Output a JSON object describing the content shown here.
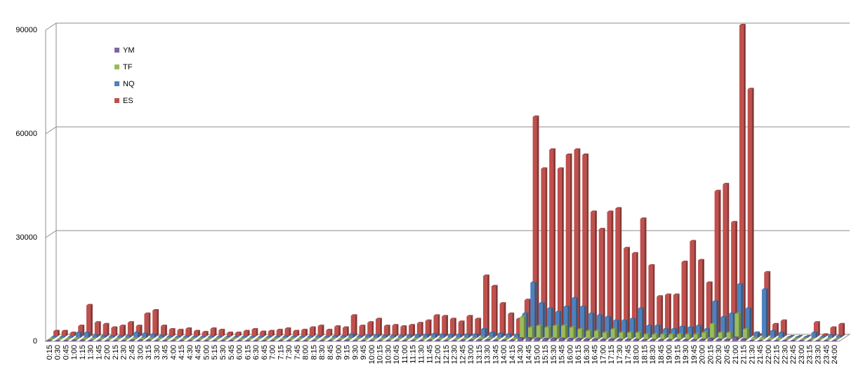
{
  "chart_data": {
    "type": "bar3d",
    "categories": [
      "0:15",
      "0:30",
      "0:45",
      "1:00",
      "1:15",
      "1:30",
      "1:45",
      "2:00",
      "2:15",
      "2:30",
      "2:45",
      "3:00",
      "3:15",
      "3:30",
      "3:45",
      "4:00",
      "4:15",
      "4:30",
      "4:45",
      "5:00",
      "5:15",
      "5:30",
      "5:45",
      "6:00",
      "6:15",
      "6:30",
      "6:45",
      "7:00",
      "7:15",
      "7:30",
      "7:45",
      "8:00",
      "8:15",
      "8:30",
      "8:45",
      "9:00",
      "9:15",
      "9:30",
      "9:45",
      "10:00",
      "10:15",
      "10:30",
      "10:45",
      "11:00",
      "11:15",
      "11:30",
      "11:45",
      "12:00",
      "12:15",
      "12:30",
      "12:45",
      "13:00",
      "13:15",
      "13:30",
      "13:45",
      "14:00",
      "14:15",
      "14:30",
      "14:45",
      "15:00",
      "15:15",
      "15:30",
      "15:45",
      "16:00",
      "16:15",
      "16:30",
      "16:45",
      "17:00",
      "17:15",
      "17:30",
      "17:45",
      "18:00",
      "18:15",
      "18:30",
      "18:45",
      "19:00",
      "19:15",
      "19:30",
      "19:45",
      "20:00",
      "20:15",
      "20:30",
      "20:45",
      "21:00",
      "21:15",
      "21:30",
      "21:45",
      "22:00",
      "22:15",
      "22:30",
      "22:45",
      "23:00",
      "23:15",
      "23:30",
      "23:45",
      "24:00"
    ],
    "series": [
      {
        "name": "ES",
        "color": "#c0504d",
        "values": [
          1500,
          1500,
          1000,
          3000,
          9000,
          4000,
          3500,
          2500,
          3000,
          4000,
          3000,
          6500,
          7500,
          3000,
          2000,
          1800,
          2200,
          1500,
          1200,
          2200,
          1800,
          1000,
          1000,
          1500,
          2000,
          1300,
          1500,
          1800,
          2200,
          1500,
          1800,
          2500,
          3000,
          1800,
          2800,
          2500,
          6000,
          3000,
          4000,
          5000,
          3000,
          3200,
          2800,
          3200,
          3800,
          4500,
          6000,
          5800,
          5000,
          4200,
          5800,
          5000,
          17500,
          14500,
          9500,
          6500,
          5000,
          10500,
          63500,
          48500,
          54000,
          48500,
          52500,
          54000,
          52500,
          36000,
          31000,
          36000,
          37000,
          25500,
          24000,
          34000,
          20500,
          11500,
          12000,
          12000,
          21500,
          27500,
          22000,
          15500,
          42000,
          44000,
          33000,
          90000,
          71500,
          500,
          18500,
          3500,
          4500,
          0,
          0,
          0,
          4000,
          500,
          2500,
          3500
        ]
      },
      {
        "name": "NQ",
        "color": "#4f81bd",
        "values": [
          300,
          300,
          300,
          1500,
          1500,
          800,
          600,
          500,
          500,
          600,
          1500,
          1200,
          1000,
          600,
          400,
          300,
          400,
          300,
          300,
          400,
          300,
          200,
          200,
          300,
          300,
          300,
          300,
          300,
          400,
          300,
          300,
          400,
          500,
          300,
          500,
          500,
          1000,
          500,
          700,
          800,
          600,
          600,
          600,
          700,
          800,
          900,
          1100,
          1000,
          900,
          900,
          1000,
          1000,
          2500,
          1500,
          1200,
          1000,
          900,
          7000,
          16000,
          10000,
          8500,
          7500,
          9000,
          11500,
          9000,
          7000,
          6500,
          6000,
          5000,
          5000,
          5500,
          8500,
          3500,
          3500,
          2500,
          2500,
          3200,
          3000,
          3500,
          2500,
          10500,
          6000,
          7000,
          15500,
          8500,
          1500,
          14000,
          2000,
          1500,
          200,
          200,
          200,
          1500,
          300,
          800,
          600
        ]
      },
      {
        "name": "TF",
        "color": "#9bbb59",
        "values": [
          200,
          200,
          200,
          300,
          300,
          200,
          200,
          200,
          200,
          200,
          300,
          300,
          300,
          200,
          200,
          200,
          200,
          200,
          200,
          200,
          200,
          200,
          200,
          200,
          200,
          200,
          200,
          200,
          200,
          200,
          200,
          200,
          200,
          200,
          200,
          200,
          300,
          200,
          200,
          200,
          200,
          200,
          200,
          200,
          200,
          200,
          300,
          300,
          200,
          200,
          300,
          300,
          500,
          400,
          300,
          300,
          300,
          6500,
          3500,
          4000,
          3500,
          4000,
          4000,
          3500,
          3000,
          2500,
          2500,
          2000,
          3000,
          2000,
          2000,
          2000,
          1500,
          1500,
          1500,
          1500,
          1500,
          1500,
          1500,
          2000,
          4500,
          2000,
          2000,
          7500,
          3000,
          500,
          500,
          300,
          300,
          100,
          100,
          100,
          100,
          100,
          100,
          100
        ]
      },
      {
        "name": "YM",
        "color": "#8064a2",
        "values": [
          100,
          100,
          100,
          200,
          200,
          100,
          100,
          100,
          100,
          100,
          200,
          200,
          200,
          100,
          100,
          100,
          100,
          100,
          100,
          100,
          100,
          100,
          100,
          100,
          100,
          100,
          100,
          100,
          100,
          100,
          100,
          100,
          100,
          100,
          100,
          100,
          200,
          100,
          100,
          100,
          100,
          100,
          100,
          100,
          100,
          100,
          200,
          200,
          100,
          100,
          200,
          200,
          300,
          300,
          200,
          200,
          200,
          800,
          800,
          700,
          600,
          700,
          700,
          600,
          600,
          500,
          500,
          400,
          500,
          400,
          400,
          400,
          300,
          300,
          300,
          300,
          300,
          300,
          300,
          400,
          700,
          400,
          400,
          1000,
          500,
          100,
          100,
          100,
          100,
          100,
          100,
          100,
          100,
          100,
          100,
          100
        ]
      }
    ],
    "ylim": [
      0,
      90000
    ],
    "yticks": [
      0,
      30000,
      60000,
      90000
    ],
    "grid": true,
    "legend": "upper-left"
  }
}
